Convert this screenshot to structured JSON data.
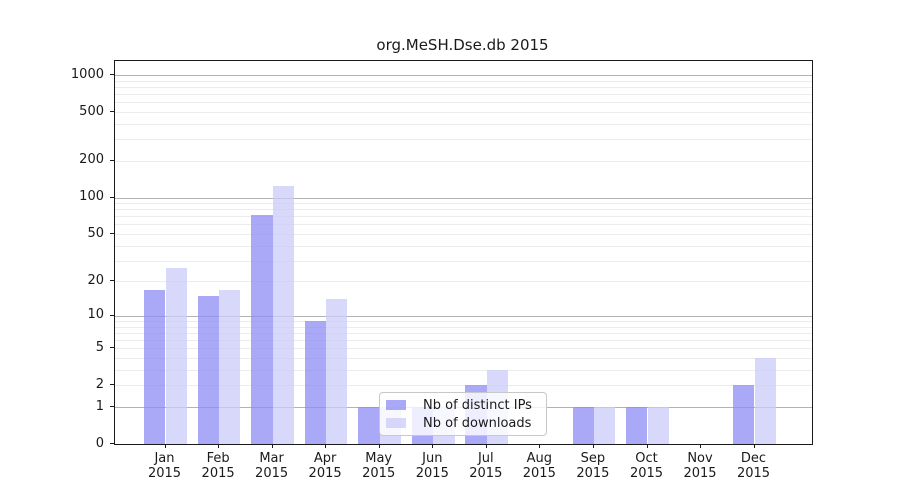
{
  "chart_data": {
    "type": "bar",
    "title": "org.MeSH.Dse.db 2015",
    "categories": [
      "Jan",
      "Feb",
      "Mar",
      "Apr",
      "May",
      "Jun",
      "Jul",
      "Aug",
      "Sep",
      "Oct",
      "Nov",
      "Dec"
    ],
    "x_year": "2015",
    "series": [
      {
        "name": "Nb of distinct IPs",
        "color": "#8c8cf6",
        "values": [
          17,
          15,
          72,
          9,
          1,
          1,
          2,
          0,
          1,
          1,
          0,
          2
        ]
      },
      {
        "name": "Nb of downloads",
        "color": "#cbcbfa",
        "values": [
          26,
          17,
          125,
          14,
          1,
          1,
          3,
          0,
          1,
          1,
          0,
          4
        ]
      }
    ],
    "bar_opacity": 0.75,
    "yscale": "log1p",
    "ylim": [
      0,
      1300
    ],
    "y_ticks": [
      0,
      1,
      2,
      5,
      10,
      20,
      50,
      100,
      200,
      500,
      1000
    ],
    "grid": {
      "major": [
        1,
        10,
        100,
        1000
      ],
      "minor": [
        2,
        3,
        4,
        5,
        6,
        7,
        8,
        9,
        20,
        30,
        40,
        50,
        60,
        70,
        80,
        90,
        200,
        300,
        400,
        500,
        600,
        700,
        800,
        900
      ],
      "major_color": "#b3b3b3",
      "minor_color": "#ececec"
    },
    "legend_position": "inside-bottom-center",
    "xlabel": "",
    "ylabel": ""
  }
}
